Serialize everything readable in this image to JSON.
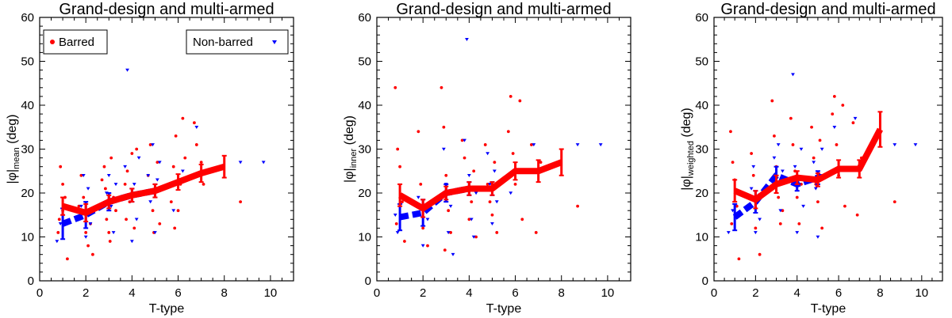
{
  "colors": {
    "barred": "#ff0000",
    "nonbarred": "#0000ff",
    "axes": "#000000"
  },
  "legend": {
    "barred_label": "Barred",
    "nonbarred_label": "Non-barred"
  },
  "chart_data": [
    {
      "type": "scatter",
      "title": "Grand-design and multi-armed",
      "xlabel": "T-type",
      "ylabel_main": "|φ|",
      "ylabel_sub": "mean",
      "ylabel_unit": " (deg)",
      "xlim": [
        0,
        11
      ],
      "ylim": [
        0,
        60
      ],
      "xticks": [
        0,
        2,
        4,
        6,
        8,
        10
      ],
      "yticks": [
        0,
        10,
        20,
        30,
        40,
        50,
        60
      ],
      "legend": true,
      "barred_mean": [
        [
          1,
          17
        ],
        [
          2,
          15.5
        ],
        [
          3,
          18
        ],
        [
          4,
          19.5
        ],
        [
          5,
          20.5
        ],
        [
          6,
          22.5
        ],
        [
          7,
          24.5
        ],
        [
          8,
          26
        ]
      ],
      "barred_err": [
        2.0,
        2.0,
        1.5,
        1.5,
        1.5,
        1.8,
        2.0,
        2.5
      ],
      "nonbarred_mean": [
        [
          1,
          13
        ],
        [
          2,
          15
        ],
        [
          3,
          18
        ],
        [
          4,
          19.5
        ],
        [
          5,
          20.5
        ]
      ],
      "nonbarred_err": [
        3.5,
        3.0,
        2.0,
        1.5,
        1.5
      ],
      "barred_points": [
        [
          0.8,
          11
        ],
        [
          0.9,
          26
        ],
        [
          1,
          22
        ],
        [
          1,
          16
        ],
        [
          1.2,
          5
        ],
        [
          1.1,
          19
        ],
        [
          0.85,
          14
        ],
        [
          1.8,
          24
        ],
        [
          1.9,
          19
        ],
        [
          2,
          11
        ],
        [
          2.1,
          8
        ],
        [
          2.2,
          13
        ],
        [
          1.7,
          17
        ],
        [
          2.3,
          6
        ],
        [
          2.7,
          23
        ],
        [
          2.8,
          26
        ],
        [
          2.9,
          14
        ],
        [
          3,
          11
        ],
        [
          3.1,
          28
        ],
        [
          3.2,
          19
        ],
        [
          3.3,
          16
        ],
        [
          2.85,
          21
        ],
        [
          3.05,
          9
        ],
        [
          3.7,
          22
        ],
        [
          3.8,
          25
        ],
        [
          3.9,
          18
        ],
        [
          4,
          29
        ],
        [
          4.1,
          12
        ],
        [
          4.2,
          30
        ],
        [
          4.3,
          20
        ],
        [
          3.75,
          14
        ],
        [
          4.7,
          24
        ],
        [
          4.8,
          31
        ],
        [
          4.9,
          16
        ],
        [
          5,
          21
        ],
        [
          5.1,
          27
        ],
        [
          5.2,
          13
        ],
        [
          4.95,
          11
        ],
        [
          5.7,
          18
        ],
        [
          5.8,
          26
        ],
        [
          5.9,
          33
        ],
        [
          6,
          16
        ],
        [
          6.1,
          22
        ],
        [
          6.2,
          37
        ],
        [
          6.3,
          28
        ],
        [
          5.85,
          12
        ],
        [
          6.7,
          36
        ],
        [
          6.8,
          31
        ],
        [
          7,
          27
        ],
        [
          7.1,
          22
        ],
        [
          8.7,
          18
        ]
      ],
      "nonbarred_points": [
        [
          0.75,
          9
        ],
        [
          0.9,
          13
        ],
        [
          1.8,
          17
        ],
        [
          1.9,
          24
        ],
        [
          2,
          10
        ],
        [
          2.1,
          21
        ],
        [
          2.2,
          13
        ],
        [
          2.9,
          20
        ],
        [
          3,
          24
        ],
        [
          3.1,
          17
        ],
        [
          3.2,
          11
        ],
        [
          3.3,
          22
        ],
        [
          3.7,
          26
        ],
        [
          3.8,
          48
        ],
        [
          3.9,
          19
        ],
        [
          4,
          9
        ],
        [
          4.1,
          22
        ],
        [
          4.2,
          14
        ],
        [
          4.3,
          28
        ],
        [
          4.7,
          24
        ],
        [
          4.8,
          18
        ],
        [
          4.9,
          31
        ],
        [
          5,
          11
        ],
        [
          5.1,
          23
        ],
        [
          5.2,
          27
        ],
        [
          5.8,
          16
        ],
        [
          6.2,
          25
        ],
        [
          6.8,
          35
        ],
        [
          8.7,
          27
        ],
        [
          9.7,
          27
        ]
      ]
    },
    {
      "type": "scatter",
      "title": "Grand-design and multi-armed",
      "xlabel": "T-type",
      "ylabel_main": "|φ|",
      "ylabel_sub": "inner",
      "ylabel_unit": " (deg)",
      "xlim": [
        0,
        11
      ],
      "ylim": [
        0,
        60
      ],
      "xticks": [
        0,
        2,
        4,
        6,
        8,
        10
      ],
      "yticks": [
        0,
        10,
        20,
        30,
        40,
        50,
        60
      ],
      "legend": false,
      "barred_mean": [
        [
          1,
          19.5
        ],
        [
          2,
          16.5
        ],
        [
          3,
          20
        ],
        [
          4,
          21
        ],
        [
          5,
          21
        ],
        [
          6,
          25
        ],
        [
          7,
          25
        ],
        [
          8,
          27
        ]
      ],
      "barred_err": [
        2.5,
        2.0,
        1.5,
        1.5,
        1.5,
        2.0,
        2.5,
        3.0
      ],
      "nonbarred_mean": [
        [
          1,
          14.5
        ],
        [
          2,
          15.5
        ],
        [
          3,
          20
        ],
        [
          4,
          21
        ],
        [
          5,
          21
        ]
      ],
      "nonbarred_err": [
        3.0,
        3.0,
        2.0,
        1.5,
        1.5
      ],
      "barred_points": [
        [
          0.8,
          44
        ],
        [
          0.9,
          30
        ],
        [
          1,
          26
        ],
        [
          1.1,
          18
        ],
        [
          1.2,
          9
        ],
        [
          0.85,
          13
        ],
        [
          1.8,
          34
        ],
        [
          1.9,
          22
        ],
        [
          2,
          12
        ],
        [
          2.1,
          17
        ],
        [
          2.2,
          8
        ],
        [
          2.8,
          44
        ],
        [
          2.9,
          35
        ],
        [
          3,
          24
        ],
        [
          3.1,
          16
        ],
        [
          3.2,
          11
        ],
        [
          3.3,
          20
        ],
        [
          2.95,
          7
        ],
        [
          3.7,
          32
        ],
        [
          3.8,
          28
        ],
        [
          3.9,
          21
        ],
        [
          4,
          14
        ],
        [
          4.1,
          18
        ],
        [
          4.2,
          25
        ],
        [
          4.3,
          10
        ],
        [
          4.7,
          31
        ],
        [
          4.8,
          22
        ],
        [
          4.9,
          18
        ],
        [
          5,
          15
        ],
        [
          5.1,
          27
        ],
        [
          5.2,
          11
        ],
        [
          5.7,
          34
        ],
        [
          5.8,
          42
        ],
        [
          5.9,
          29
        ],
        [
          6,
          22
        ],
        [
          6.2,
          41
        ],
        [
          6.3,
          14
        ],
        [
          6.7,
          31
        ],
        [
          6.9,
          11
        ],
        [
          7.1,
          27
        ],
        [
          8.7,
          17
        ]
      ],
      "nonbarred_points": [
        [
          0.8,
          15
        ],
        [
          0.9,
          11
        ],
        [
          1.8,
          19
        ],
        [
          2,
          8
        ],
        [
          2.2,
          14
        ],
        [
          2.9,
          30
        ],
        [
          3,
          22
        ],
        [
          3.1,
          11
        ],
        [
          3.2,
          17
        ],
        [
          3.3,
          6
        ],
        [
          3.8,
          32
        ],
        [
          3.9,
          55
        ],
        [
          4,
          24
        ],
        [
          4.1,
          14
        ],
        [
          4.2,
          10
        ],
        [
          4.3,
          20
        ],
        [
          4.8,
          29
        ],
        [
          4.9,
          22
        ],
        [
          5,
          13
        ],
        [
          5.1,
          25
        ],
        [
          5.2,
          18
        ],
        [
          5.8,
          20
        ],
        [
          6.8,
          31
        ],
        [
          8.7,
          31
        ],
        [
          9.7,
          31
        ]
      ]
    },
    {
      "type": "scatter",
      "title": "Grand-design and multi-armed",
      "xlabel": "T-type",
      "ylabel_main": "|φ|",
      "ylabel_sub": "weighted",
      "ylabel_unit": " (deg)",
      "xlim": [
        0,
        11
      ],
      "ylim": [
        0,
        60
      ],
      "xticks": [
        0,
        2,
        4,
        6,
        8,
        10
      ],
      "yticks": [
        0,
        10,
        20,
        30,
        40,
        50,
        60
      ],
      "legend": false,
      "barred_mean": [
        [
          1,
          20.5
        ],
        [
          2,
          18.5
        ],
        [
          3,
          22
        ],
        [
          4,
          23.5
        ],
        [
          5,
          23
        ],
        [
          6,
          25.5
        ],
        [
          7,
          25.5
        ],
        [
          8,
          34.5
        ]
      ],
      "barred_err": [
        2.5,
        2.0,
        2.0,
        1.5,
        1.5,
        2.0,
        2.0,
        4.0
      ],
      "nonbarred_mean": [
        [
          1,
          14.5
        ],
        [
          2,
          18
        ],
        [
          3,
          24
        ],
        [
          4,
          22
        ],
        [
          5,
          23.5
        ]
      ],
      "nonbarred_err": [
        3.0,
        2.5,
        2.0,
        1.5,
        1.5
      ],
      "barred_points": [
        [
          0.8,
          34
        ],
        [
          0.9,
          27
        ],
        [
          1,
          23
        ],
        [
          1.1,
          17
        ],
        [
          1.2,
          5
        ],
        [
          0.85,
          13
        ],
        [
          1.8,
          29
        ],
        [
          1.9,
          24
        ],
        [
          2,
          12
        ],
        [
          2.1,
          19
        ],
        [
          2.2,
          6
        ],
        [
          2.8,
          41
        ],
        [
          2.9,
          33
        ],
        [
          3,
          26
        ],
        [
          3.1,
          19
        ],
        [
          3.2,
          13
        ],
        [
          3.3,
          16
        ],
        [
          3.7,
          37
        ],
        [
          3.8,
          31
        ],
        [
          3.9,
          25
        ],
        [
          4,
          19
        ],
        [
          4.1,
          13
        ],
        [
          4.2,
          22
        ],
        [
          4.7,
          35
        ],
        [
          4.8,
          28
        ],
        [
          4.9,
          22
        ],
        [
          5,
          18
        ],
        [
          5.1,
          32
        ],
        [
          5.2,
          12
        ],
        [
          5.7,
          38
        ],
        [
          5.8,
          42
        ],
        [
          5.9,
          31
        ],
        [
          6,
          24
        ],
        [
          6.2,
          40
        ],
        [
          6.3,
          17
        ],
        [
          6.7,
          36
        ],
        [
          6.9,
          15
        ],
        [
          7.1,
          28
        ],
        [
          8.7,
          18
        ]
      ],
      "nonbarred_points": [
        [
          0.7,
          11
        ],
        [
          0.9,
          16
        ],
        [
          1.8,
          21
        ],
        [
          1.9,
          26
        ],
        [
          2,
          11
        ],
        [
          2.1,
          19
        ],
        [
          2.2,
          14
        ],
        [
          2.9,
          28
        ],
        [
          3,
          22
        ],
        [
          3.1,
          31
        ],
        [
          3.2,
          16
        ],
        [
          3.3,
          25
        ],
        [
          3.8,
          47
        ],
        [
          3.9,
          26
        ],
        [
          4,
          11
        ],
        [
          4.1,
          22
        ],
        [
          4.2,
          30
        ],
        [
          4.3,
          17
        ],
        [
          4.8,
          27
        ],
        [
          4.9,
          21
        ],
        [
          5,
          10
        ],
        [
          5.1,
          24
        ],
        [
          5.2,
          30
        ],
        [
          5.8,
          35
        ],
        [
          6.8,
          37
        ],
        [
          8.7,
          31
        ],
        [
          9.7,
          31
        ]
      ]
    }
  ]
}
